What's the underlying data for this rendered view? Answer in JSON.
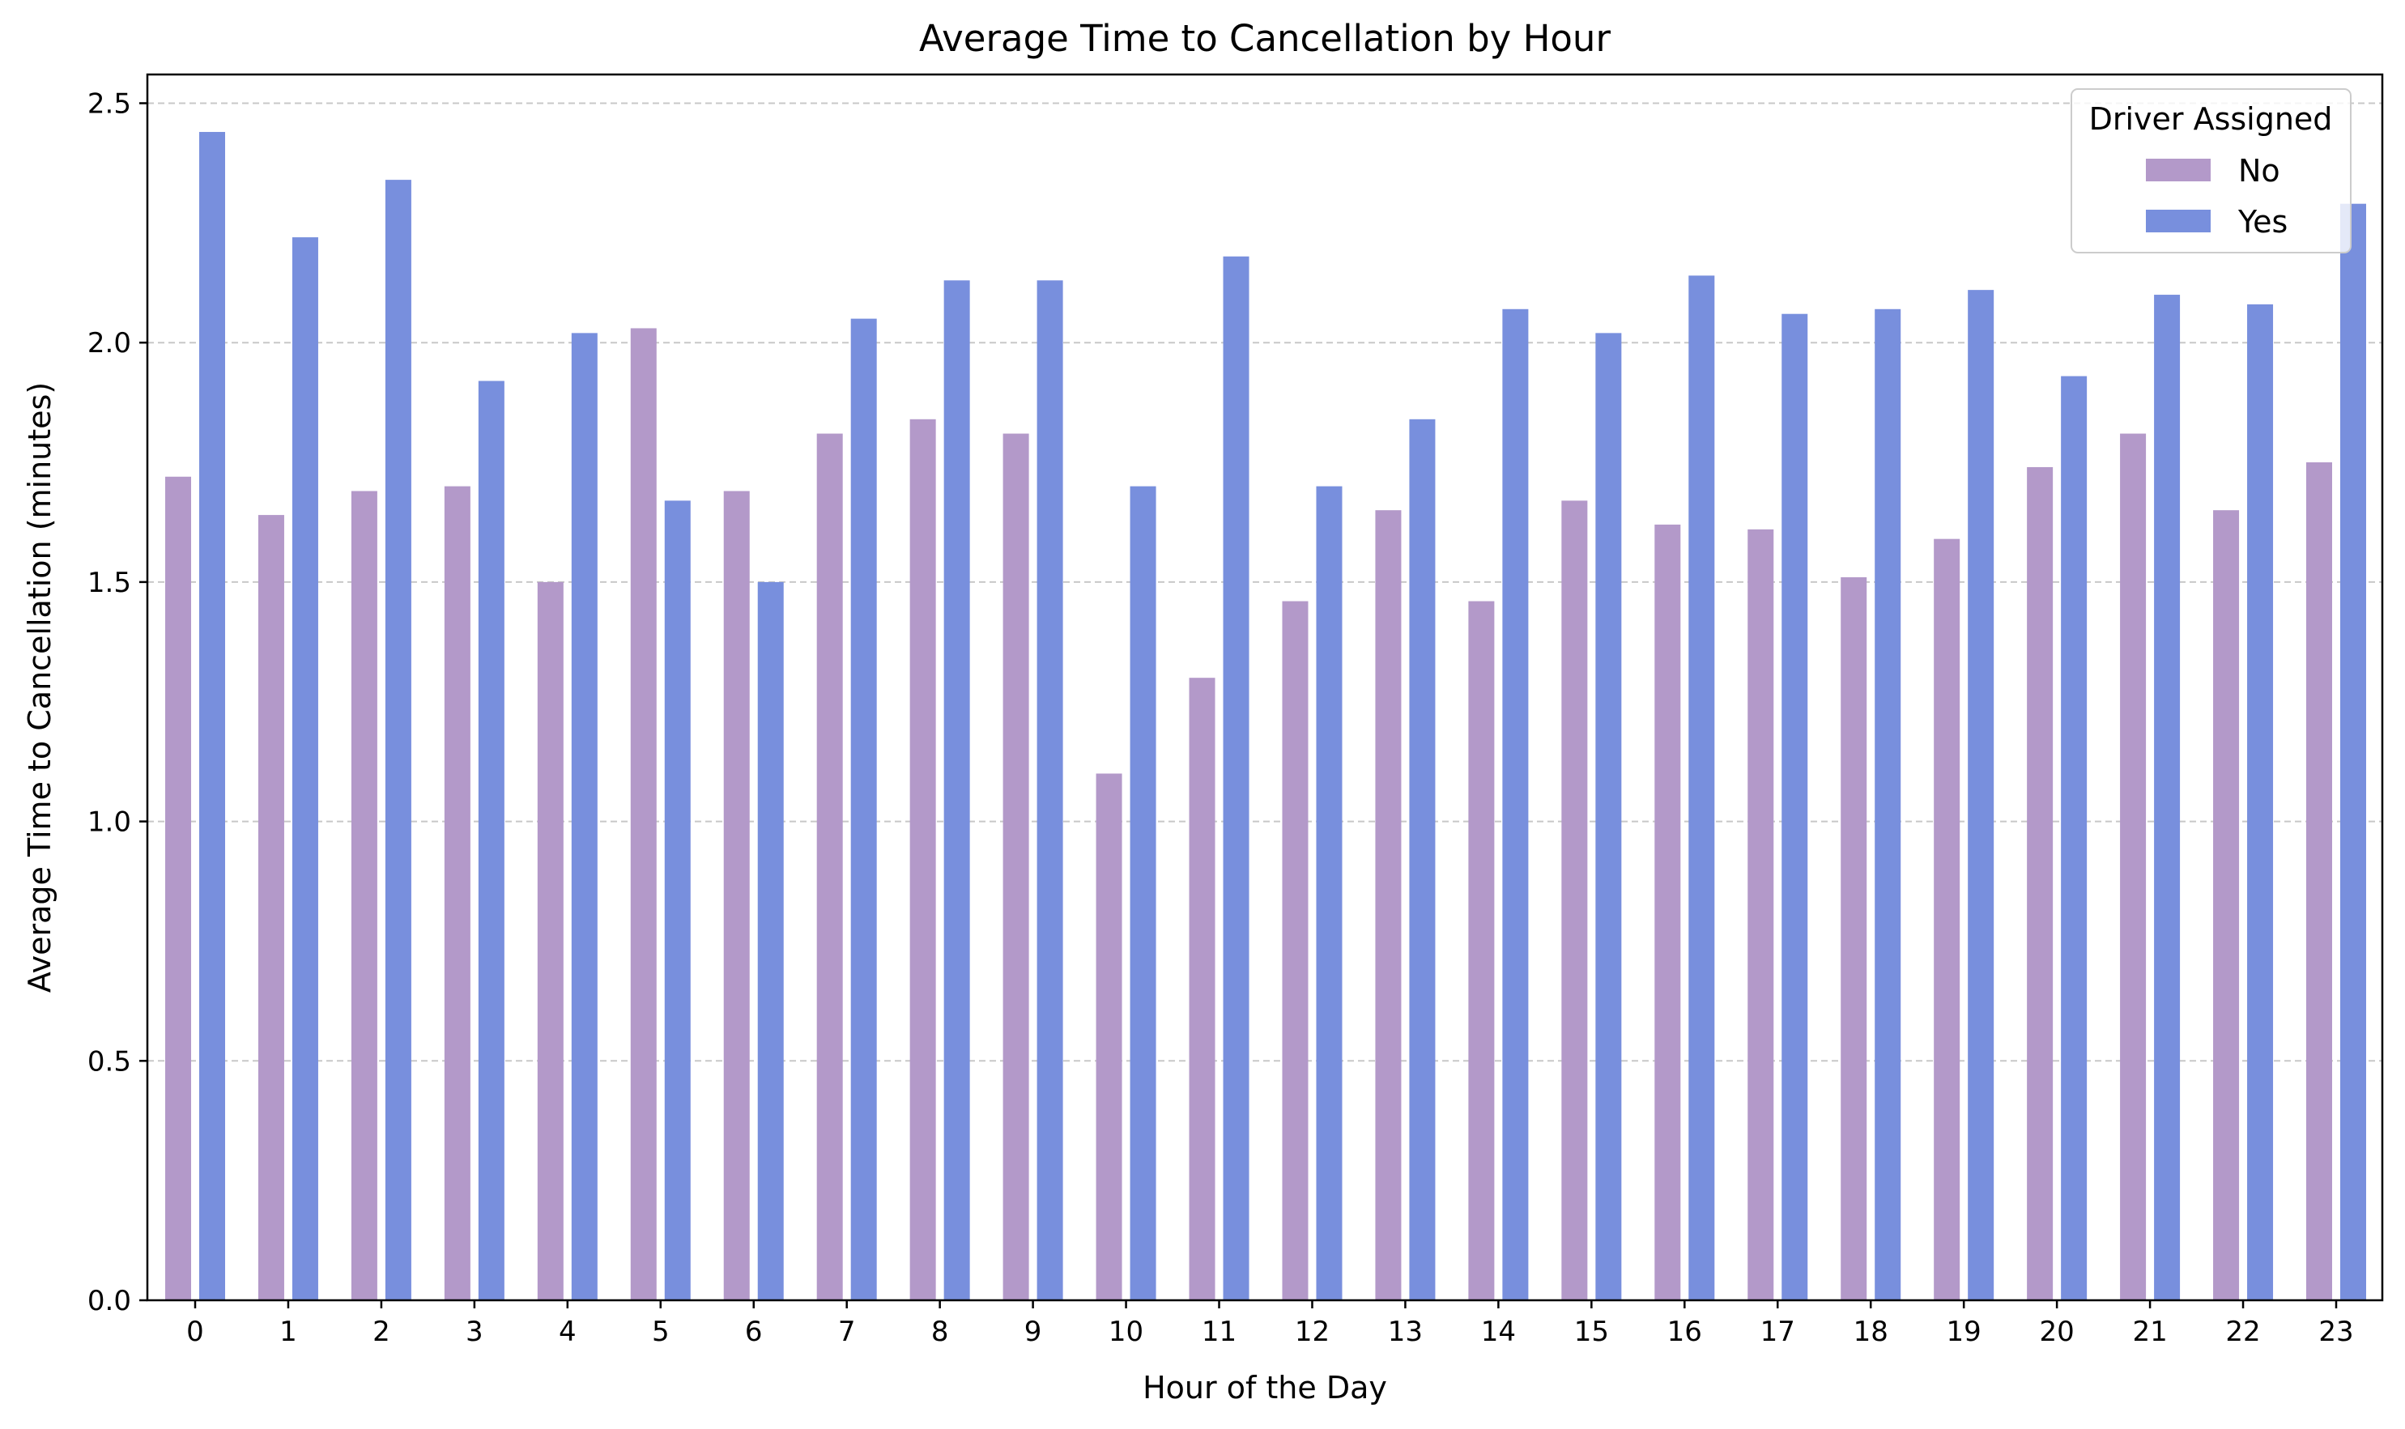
{
  "chart_data": {
    "type": "bar",
    "title": "Average Time to Cancellation by Hour",
    "xlabel": "Hour of the Day",
    "ylabel": "Average Time to Cancellation (minutes)",
    "ylim": [
      0,
      2.56
    ],
    "yticks": [
      "0.0",
      "0.5",
      "1.0",
      "1.5",
      "2.0",
      "2.5"
    ],
    "grid": "horizontal dashed",
    "legend": {
      "title": "Driver Assigned",
      "position": "top-right"
    },
    "categories": [
      "0",
      "1",
      "2",
      "3",
      "4",
      "5",
      "6",
      "7",
      "8",
      "9",
      "10",
      "11",
      "12",
      "13",
      "14",
      "15",
      "16",
      "17",
      "18",
      "19",
      "20",
      "21",
      "22",
      "23"
    ],
    "series": [
      {
        "name": "No",
        "color": "#b399c9",
        "values": [
          1.72,
          1.64,
          1.69,
          1.7,
          1.5,
          2.03,
          1.69,
          1.81,
          1.84,
          1.81,
          1.1,
          1.3,
          1.46,
          1.65,
          1.46,
          1.67,
          1.62,
          1.61,
          1.51,
          1.59,
          1.74,
          1.81,
          1.65,
          1.75
        ]
      },
      {
        "name": "Yes",
        "color": "#788fdd",
        "values": [
          2.44,
          2.22,
          2.34,
          1.92,
          2.02,
          1.67,
          1.5,
          2.05,
          2.13,
          2.13,
          1.7,
          2.18,
          1.7,
          1.84,
          2.07,
          2.02,
          2.14,
          2.06,
          2.07,
          2.11,
          1.93,
          2.1,
          2.08,
          2.29
        ]
      }
    ]
  }
}
